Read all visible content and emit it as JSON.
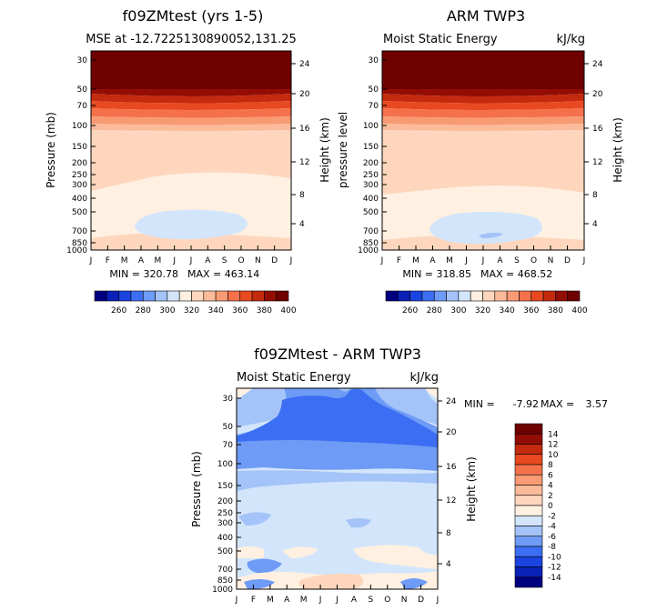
{
  "palette": [
    "#00007f",
    "#0a21b8",
    "#1a43e0",
    "#3b6ef2",
    "#6e9bf5",
    "#a4c3f8",
    "#d2e5fb",
    "#fff0e1",
    "#fdd6bd",
    "#fbbb9a",
    "#f89a74",
    "#f4714b",
    "#e84920",
    "#c42a0e",
    "#940d05",
    "#6f0000"
  ],
  "months": [
    "J",
    "F",
    "M",
    "A",
    "M",
    "J",
    "J",
    "A",
    "S",
    "O",
    "N",
    "D",
    "J"
  ],
  "pressure_ticks": [
    "30",
    "50",
    "70",
    "100",
    "150",
    "200",
    "250",
    "300",
    "400",
    "500",
    "700",
    "850",
    "1000"
  ],
  "height_ticks": [
    "24",
    "20",
    "16",
    "12",
    "8",
    "4"
  ],
  "units": "kJ/kg",
  "variable": "Moist Static Energy",
  "chart_data": [
    {
      "type": "heatmap",
      "title": "f09ZMtest (yrs 1-5)",
      "subtitle": "MSE at -12.7225130890052,131.25",
      "ylabel": "Pressure (mb)",
      "y2label": "Height (km)",
      "min_label": "MIN = 320.78",
      "max_label": "MAX = 463.14",
      "colorbar_labels": [
        "260",
        "280",
        "300",
        "320",
        "340",
        "360",
        "380",
        "400"
      ]
    },
    {
      "type": "heatmap",
      "title": "ARM TWP3",
      "subtitle_left": "Moist Static Energy",
      "subtitle_right": "kJ/kg",
      "ylabel": "pressure  level",
      "y2label": "Height (km)",
      "min_label": "MIN = 318.85",
      "max_label": "MAX = 468.52",
      "colorbar_labels": [
        "260",
        "280",
        "300",
        "320",
        "340",
        "360",
        "380",
        "400"
      ]
    },
    {
      "type": "heatmap",
      "title": "f09ZMtest - ARM TWP3",
      "subtitle_left": "Moist Static Energy",
      "subtitle_right": "kJ/kg",
      "ylabel": "Pressure (mb)",
      "y2label": "Height (km)",
      "min_label": "MIN =",
      "min_value": "-7.92",
      "max_label": "MAX =",
      "max_value": "3.57",
      "colorbar_labels": [
        "14",
        "12",
        "10",
        "8",
        "6",
        "4",
        "2",
        "0",
        "-2",
        "-4",
        "-6",
        "-8",
        "-10",
        "-12",
        "-14"
      ]
    }
  ]
}
